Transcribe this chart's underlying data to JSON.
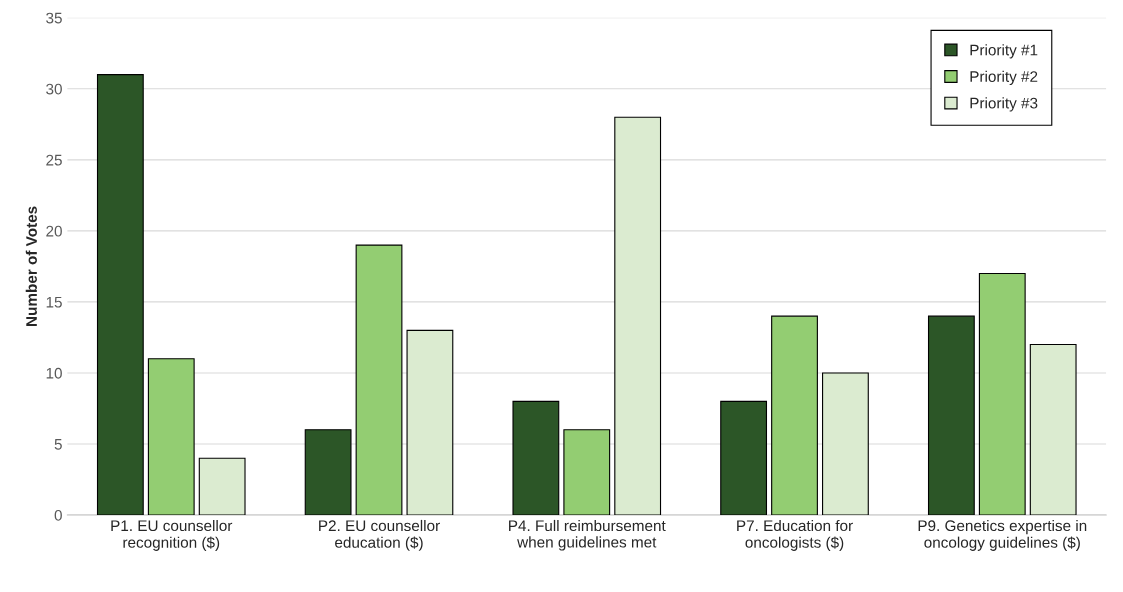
{
  "chart_data": {
    "type": "bar",
    "ylabel": "Number of Votes",
    "categories": [
      "P1. EU counsellor\nrecognition ($)",
      "P2. EU counsellor\neducation ($)",
      "P4. Full reimbursement\nwhen guidelines met",
      "P7. Education for\noncologists ($)",
      "P9. Genetics expertise in\noncology guidelines ($)"
    ],
    "series": [
      {
        "name": "Priority #1",
        "color": "#2c5627",
        "values": [
          31,
          6,
          8,
          8,
          14
        ]
      },
      {
        "name": "Priority #2",
        "color": "#93cd72",
        "values": [
          11,
          19,
          6,
          14,
          17
        ]
      },
      {
        "name": "Priority #3",
        "color": "#dbebd0",
        "values": [
          4,
          13,
          28,
          10,
          12
        ]
      }
    ],
    "ylim": [
      0,
      35
    ],
    "yticks": [
      0,
      5,
      10,
      15,
      20,
      25,
      30,
      35
    ],
    "grid": "y",
    "legend": "top right"
  }
}
